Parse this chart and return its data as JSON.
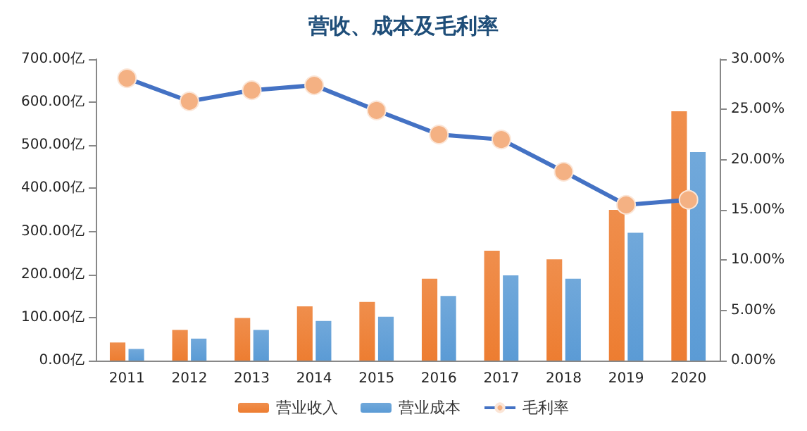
{
  "chart_data": {
    "type": "bar",
    "title": "营收、成本及毛利率",
    "categories": [
      "2011",
      "2012",
      "2013",
      "2014",
      "2015",
      "2016",
      "2017",
      "2018",
      "2019",
      "2020"
    ],
    "series": [
      {
        "name": "营业收入",
        "color": "#ed7d31",
        "values": [
          42,
          71,
          99,
          126,
          136,
          190,
          255,
          235,
          350,
          579
        ]
      },
      {
        "name": "营业成本",
        "color": "#5b9bd5",
        "values": [
          27,
          51,
          71,
          92,
          102,
          150,
          198,
          190,
          297,
          484
        ]
      },
      {
        "name": "毛利率",
        "type": "line",
        "axis": "y2",
        "color": "#4472c4",
        "marker": "circle",
        "values": [
          28.1,
          25.8,
          26.9,
          27.4,
          24.9,
          22.5,
          22.0,
          18.8,
          15.5,
          16.0
        ]
      }
    ],
    "ylim": [
      0,
      700
    ],
    "yticks": [
      {
        "value": 0,
        "label": "0.00亿"
      },
      {
        "value": 100,
        "label": "100.00亿"
      },
      {
        "value": 200,
        "label": "200.00亿"
      },
      {
        "value": 300,
        "label": "300.00亿"
      },
      {
        "value": 400,
        "label": "400.00亿"
      },
      {
        "value": 500,
        "label": "500.00亿"
      },
      {
        "value": 600,
        "label": "600.00亿"
      },
      {
        "value": 700,
        "label": "700.00亿"
      }
    ],
    "y2lim": [
      0,
      30
    ],
    "y2ticks": [
      {
        "value": 0,
        "label": "0.00%"
      },
      {
        "value": 5,
        "label": "5.00%"
      },
      {
        "value": 10,
        "label": "10.00%"
      },
      {
        "value": 15,
        "label": "15.00%"
      },
      {
        "value": 20,
        "label": "20.00%"
      },
      {
        "value": 25,
        "label": "25.00%"
      },
      {
        "value": 30,
        "label": "30.00%"
      }
    ],
    "grid": false,
    "legend": "bottom"
  }
}
